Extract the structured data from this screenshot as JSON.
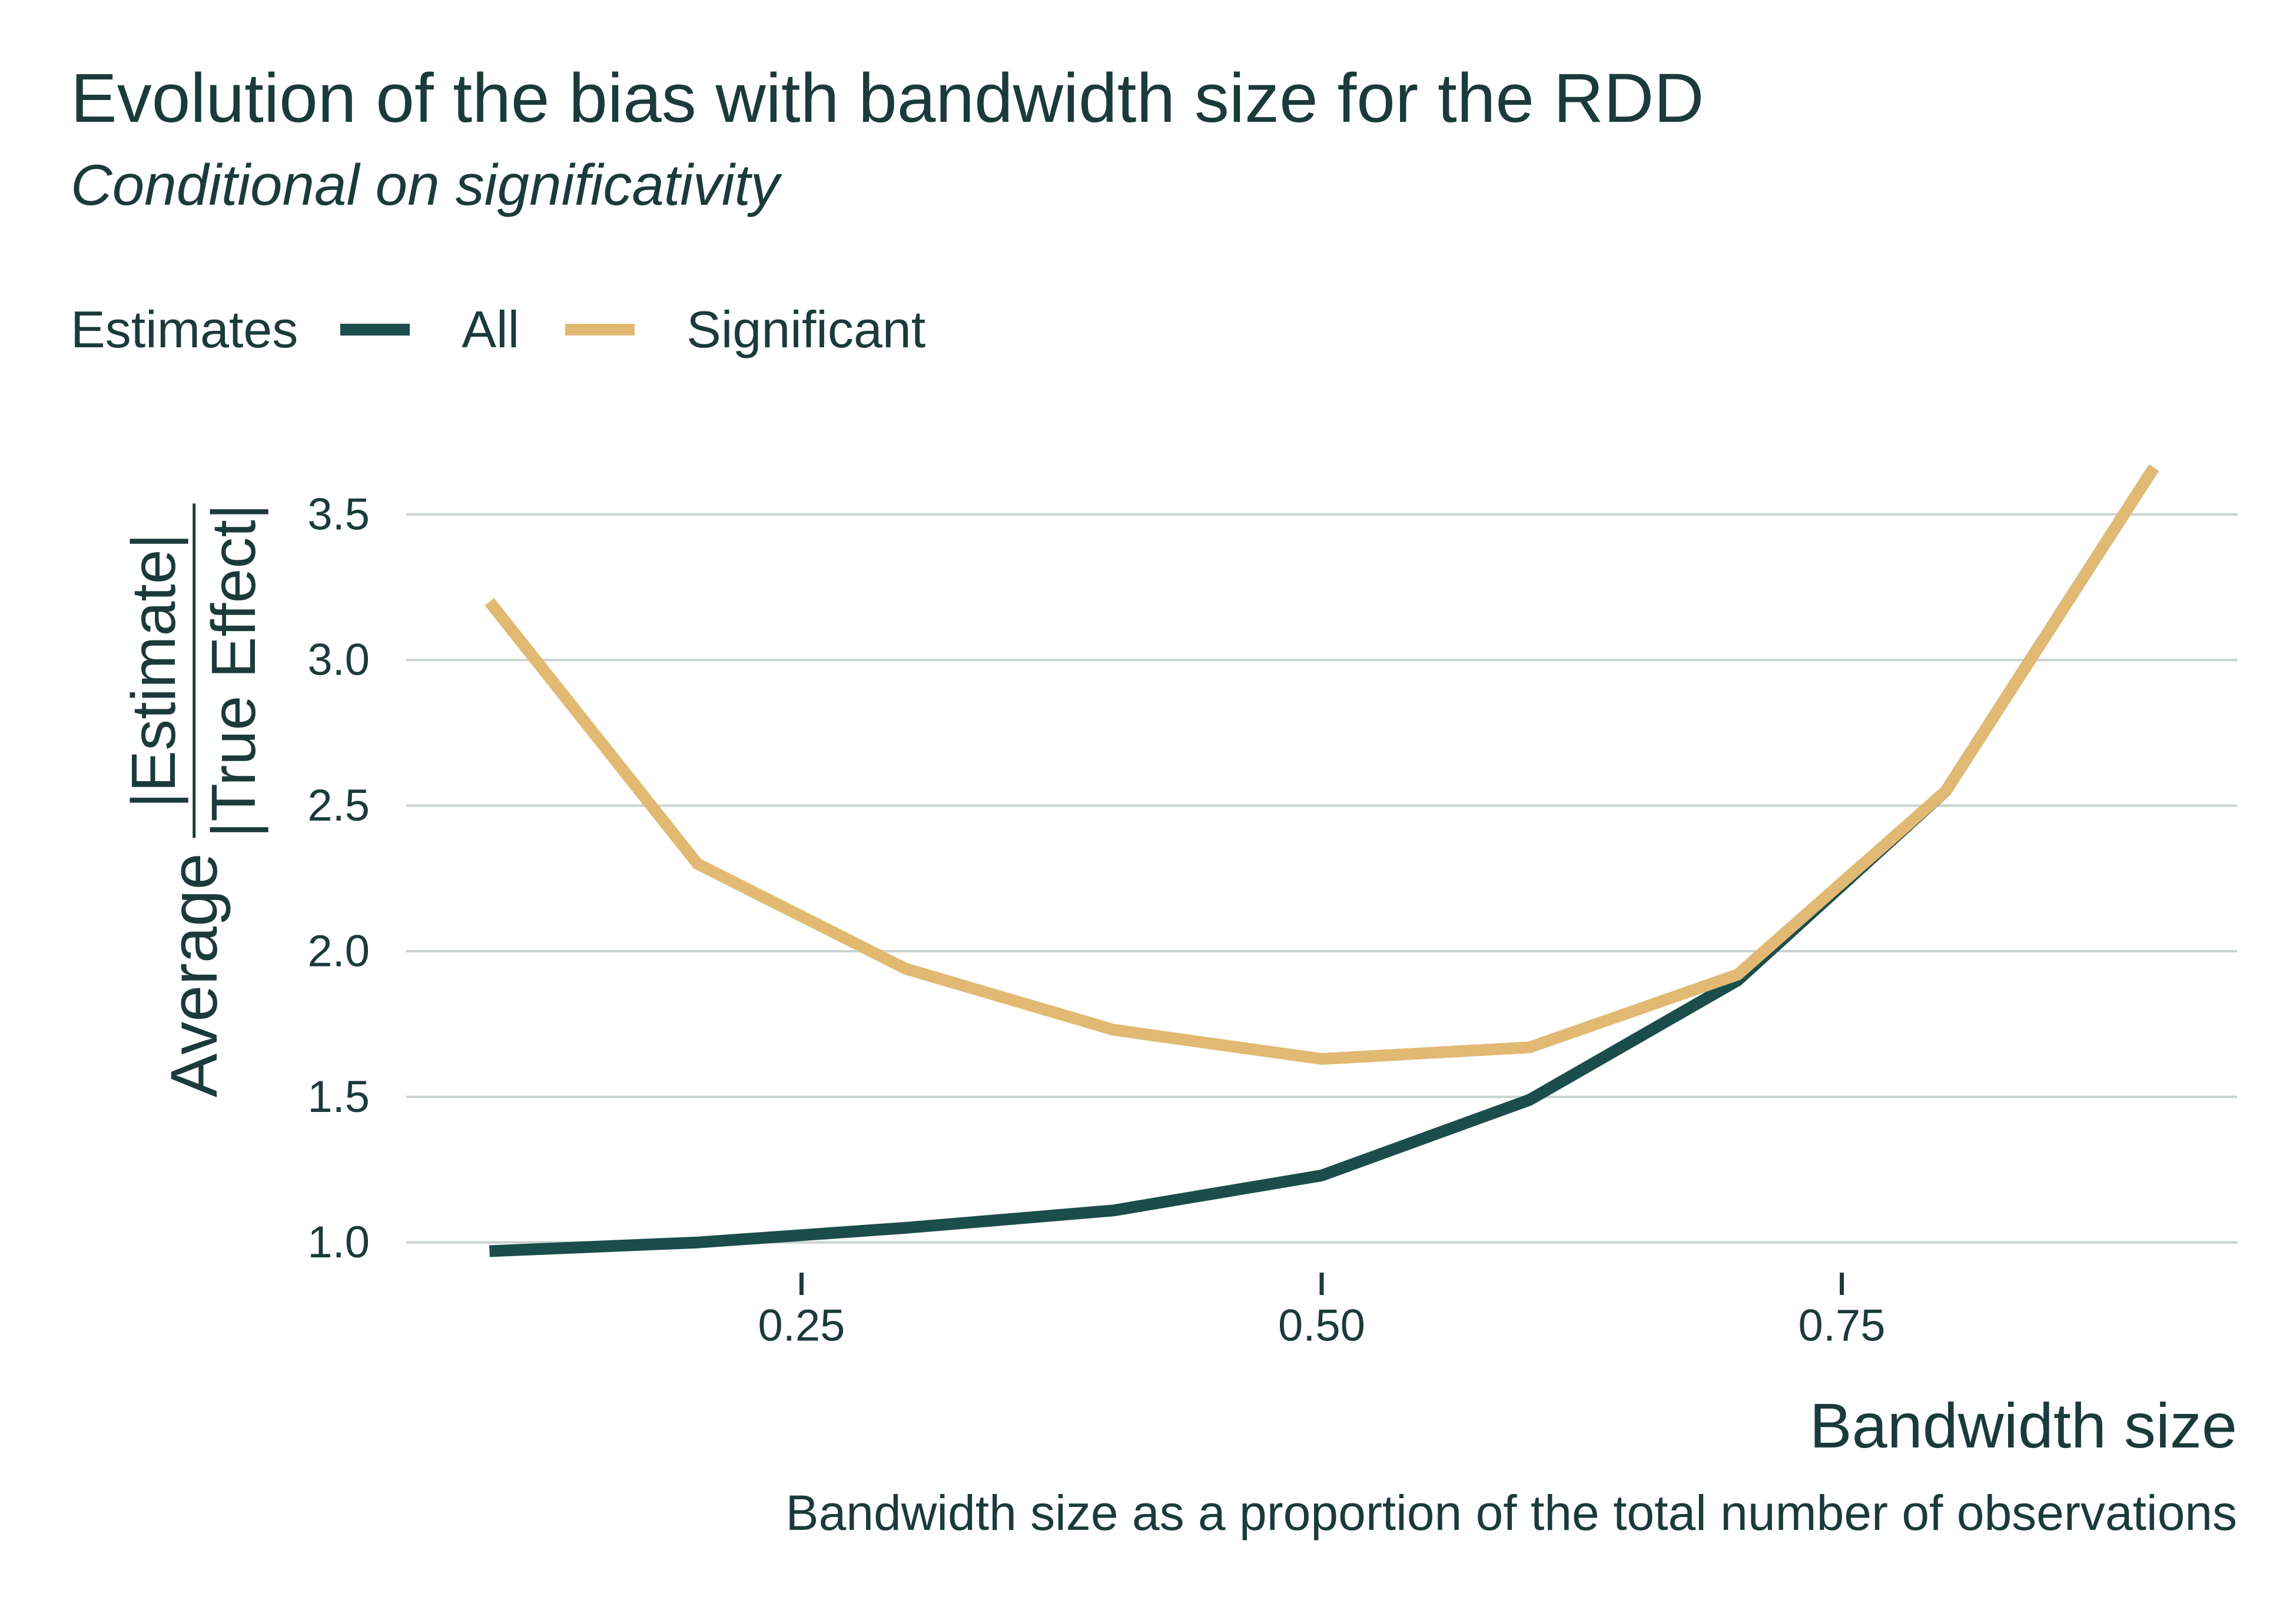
{
  "chart_data": {
    "type": "line",
    "title": "Evolution of the bias with bandwidth size for the RDD",
    "subtitle": "Conditional on significativity",
    "legend": {
      "title": "Estimates",
      "position": "top-left"
    },
    "xlabel": "Bandwidth size",
    "caption": "Bandwidth size as a proportion of the total number of observations",
    "ylabel": {
      "prefix": "Average",
      "numerator": "|Estimate|",
      "denominator": "|True Effect|"
    },
    "x": [
      0.1,
      0.2,
      0.3,
      0.4,
      0.5,
      0.6,
      0.7,
      0.8,
      0.9
    ],
    "series": [
      {
        "name": "All",
        "color": "#1b4d4b",
        "values": [
          0.97,
          1.0,
          1.05,
          1.11,
          1.23,
          1.49,
          1.9,
          2.55,
          3.66
        ]
      },
      {
        "name": "Significant",
        "color": "#e1b973",
        "values": [
          3.2,
          2.3,
          1.94,
          1.73,
          1.63,
          1.67,
          1.92,
          2.55,
          3.66
        ]
      }
    ],
    "xticks": [
      0.25,
      0.5,
      0.75
    ],
    "xtick_labels": [
      "0.25",
      "0.50",
      "0.75"
    ],
    "yticks": [
      1.0,
      1.5,
      2.0,
      2.5,
      3.0,
      3.5
    ],
    "ytick_labels": [
      "1.0",
      "1.5",
      "2.0",
      "2.5",
      "3.0",
      "3.5"
    ],
    "xlim": [
      0.06,
      0.94
    ],
    "ylim": [
      0.87,
      3.72
    ],
    "grid": {
      "horizontal": true,
      "vertical": false,
      "color": "#c9d2cf"
    },
    "text_color": "#1b3b3a"
  }
}
